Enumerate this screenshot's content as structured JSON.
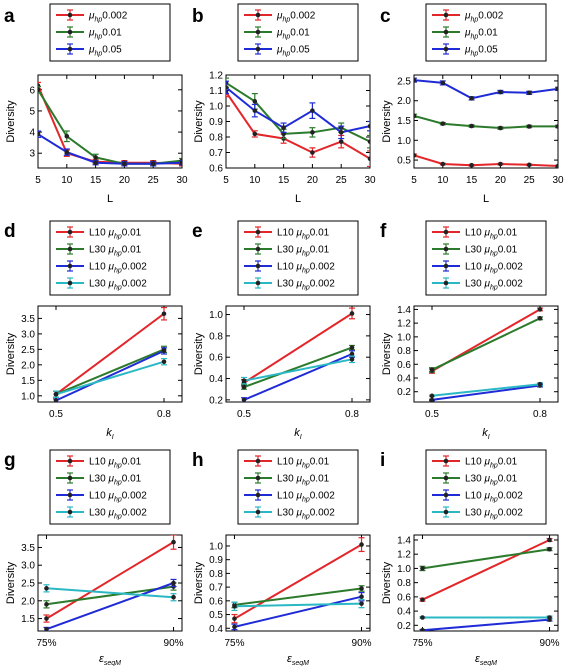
{
  "chart_data": [
    {
      "letter": "a",
      "type": "line",
      "ylabel": "Diversity",
      "xlabel": "L",
      "xlabel_italic": false,
      "x": [
        5,
        10,
        15,
        20,
        25,
        30
      ],
      "xlim": [
        5,
        30
      ],
      "ylim": [
        2.3,
        6.7
      ],
      "x_ticks": [
        5,
        10,
        15,
        20,
        25,
        30
      ],
      "x_tick_labels": [
        "5",
        "10",
        "15",
        "20",
        "25",
        "30"
      ],
      "y_ticks": [
        3,
        4,
        5,
        6
      ],
      "y_tick_labels": [
        "3",
        "4",
        "5",
        "6"
      ],
      "legend": {
        "prefix": "",
        "param": "hp",
        "suffix": [
          "0.002",
          "0.01",
          "0.05"
        ]
      },
      "series": [
        {
          "label_prefix": "",
          "label_suffix": "0.002",
          "color": "#e3262a",
          "values": [
            6.2,
            3.0,
            2.6,
            2.55,
            2.55,
            2.5
          ],
          "errors": [
            0.15,
            0.15,
            0.1,
            0.1,
            0.1,
            0.1
          ]
        },
        {
          "label_prefix": "",
          "label_suffix": "0.01",
          "color": "#2c7a2c",
          "values": [
            6.0,
            3.8,
            2.8,
            2.5,
            2.5,
            2.65
          ],
          "errors": [
            0.15,
            0.25,
            0.15,
            0.1,
            0.1,
            0.1
          ]
        },
        {
          "label_prefix": "",
          "label_suffix": "0.05",
          "color": "#1f2bd6",
          "values": [
            3.9,
            3.05,
            2.55,
            2.5,
            2.5,
            2.55
          ],
          "errors": [
            0.15,
            0.15,
            0.1,
            0.1,
            0.1,
            0.1
          ]
        }
      ]
    },
    {
      "letter": "b",
      "type": "line",
      "ylabel": "Diversity",
      "xlabel": "L",
      "xlabel_italic": false,
      "x": [
        5,
        10,
        15,
        20,
        25,
        30
      ],
      "xlim": [
        5,
        30
      ],
      "ylim": [
        0.6,
        1.2
      ],
      "x_ticks": [
        5,
        10,
        15,
        20,
        25,
        30
      ],
      "x_tick_labels": [
        "5",
        "10",
        "15",
        "20",
        "25",
        "30"
      ],
      "y_ticks": [
        0.6,
        0.7,
        0.8,
        0.9,
        1.0,
        1.1,
        1.2
      ],
      "y_tick_labels": [
        "0.6",
        "0.7",
        "0.8",
        "0.9",
        "1.0",
        "1.1",
        "1.2"
      ],
      "legend": {
        "prefix": "",
        "param": "hp",
        "suffix": [
          "0.002",
          "0.01",
          "0.05"
        ]
      },
      "series": [
        {
          "label_prefix": "",
          "label_suffix": "0.002",
          "color": "#e3262a",
          "values": [
            1.09,
            0.82,
            0.79,
            0.7,
            0.77,
            0.66
          ],
          "errors": [
            0.03,
            0.02,
            0.03,
            0.03,
            0.04,
            0.05
          ]
        },
        {
          "label_prefix": "",
          "label_suffix": "0.01",
          "color": "#2c7a2c",
          "values": [
            1.15,
            1.03,
            0.82,
            0.83,
            0.86,
            0.77
          ],
          "errors": [
            0.03,
            0.05,
            0.03,
            0.03,
            0.03,
            0.04
          ]
        },
        {
          "label_prefix": "",
          "label_suffix": "0.05",
          "color": "#1f2bd6",
          "values": [
            1.12,
            0.97,
            0.86,
            0.97,
            0.83,
            0.87
          ],
          "errors": [
            0.04,
            0.04,
            0.03,
            0.05,
            0.04,
            0.03
          ]
        }
      ]
    },
    {
      "letter": "c",
      "type": "line",
      "ylabel": "Diversity",
      "xlabel": "L",
      "xlabel_italic": false,
      "x": [
        5,
        10,
        15,
        20,
        25,
        30
      ],
      "xlim": [
        5,
        30
      ],
      "ylim": [
        0.3,
        2.65
      ],
      "x_ticks": [
        5,
        10,
        15,
        20,
        25,
        30
      ],
      "x_tick_labels": [
        "5",
        "10",
        "15",
        "20",
        "25",
        "30"
      ],
      "y_ticks": [
        0.5,
        1.0,
        1.5,
        2.0,
        2.5
      ],
      "y_tick_labels": [
        "0.5",
        "1.0",
        "1.5",
        "2.0",
        "2.5"
      ],
      "legend": {
        "prefix": "",
        "param": "hp",
        "suffix": [
          "0.002",
          "0.01",
          "0.05"
        ]
      },
      "series": [
        {
          "label_prefix": "",
          "label_suffix": "0.002",
          "color": "#e3262a",
          "values": [
            0.62,
            0.4,
            0.37,
            0.4,
            0.38,
            0.35
          ],
          "errors": [
            0.03,
            0.02,
            0.02,
            0.02,
            0.02,
            0.02
          ]
        },
        {
          "label_prefix": "",
          "label_suffix": "0.01",
          "color": "#2c7a2c",
          "values": [
            1.62,
            1.42,
            1.36,
            1.31,
            1.35,
            1.35
          ],
          "errors": [
            0.04,
            0.03,
            0.03,
            0.03,
            0.03,
            0.03
          ]
        },
        {
          "label_prefix": "",
          "label_suffix": "0.05",
          "color": "#1f2bd6",
          "values": [
            2.52,
            2.45,
            2.06,
            2.22,
            2.2,
            2.3
          ],
          "errors": [
            0.05,
            0.05,
            0.04,
            0.04,
            0.04,
            0.04
          ]
        }
      ]
    },
    {
      "letter": "d",
      "type": "line",
      "ylabel": "Diversity",
      "xlabel": "k",
      "xlabel_sub": "I",
      "xlabel_italic": true,
      "x": [
        0.5,
        0.8
      ],
      "xlim": [
        0.45,
        0.85
      ],
      "ylim": [
        0.8,
        3.9
      ],
      "x_ticks": [
        0.5,
        0.8
      ],
      "x_tick_labels": [
        "0.5",
        "0.8"
      ],
      "y_ticks": [
        1.0,
        1.5,
        2.0,
        2.5,
        3.0,
        3.5
      ],
      "y_tick_labels": [
        "1.0",
        "1.5",
        "2.0",
        "2.5",
        "3.0",
        "3.5"
      ],
      "series": [
        {
          "label_prefix": "L10 ",
          "label_suffix": "0.01",
          "color": "#e3262a",
          "values": [
            1.05,
            3.65
          ],
          "errors": [
            0.1,
            0.2
          ]
        },
        {
          "label_prefix": "L30 ",
          "label_suffix": "0.01",
          "color": "#2c7a2c",
          "values": [
            1.05,
            2.5
          ],
          "errors": [
            0.1,
            0.1
          ]
        },
        {
          "label_prefix": "L10 ",
          "label_suffix": "0.002",
          "color": "#1f2bd6",
          "values": [
            0.85,
            2.45
          ],
          "errors": [
            0.05,
            0.1
          ]
        },
        {
          "label_prefix": "L30 ",
          "label_suffix": "0.002",
          "color": "#2ab8c4",
          "values": [
            1.05,
            2.1
          ],
          "errors": [
            0.1,
            0.1
          ]
        }
      ]
    },
    {
      "letter": "e",
      "type": "line",
      "ylabel": "Diversity",
      "xlabel": "k",
      "xlabel_sub": "I",
      "xlabel_italic": true,
      "x": [
        0.5,
        0.8
      ],
      "xlim": [
        0.45,
        0.85
      ],
      "ylim": [
        0.18,
        1.08
      ],
      "x_ticks": [
        0.5,
        0.8
      ],
      "x_tick_labels": [
        "0.5",
        "0.8"
      ],
      "y_ticks": [
        0.2,
        0.4,
        0.6,
        0.8,
        1.0
      ],
      "y_tick_labels": [
        "0.2",
        "0.4",
        "0.6",
        "0.8",
        "1.0"
      ],
      "series": [
        {
          "label_prefix": "L10 ",
          "label_suffix": "0.01",
          "color": "#e3262a",
          "values": [
            0.36,
            1.01
          ],
          "errors": [
            0.03,
            0.05
          ]
        },
        {
          "label_prefix": "L30 ",
          "label_suffix": "0.01",
          "color": "#2c7a2c",
          "values": [
            0.32,
            0.69
          ],
          "errors": [
            0.02,
            0.02
          ]
        },
        {
          "label_prefix": "L10 ",
          "label_suffix": "0.002",
          "color": "#1f2bd6",
          "values": [
            0.2,
            0.63
          ],
          "errors": [
            0.02,
            0.03
          ]
        },
        {
          "label_prefix": "L30 ",
          "label_suffix": "0.002",
          "color": "#2ab8c4",
          "values": [
            0.38,
            0.58
          ],
          "errors": [
            0.03,
            0.03
          ]
        }
      ]
    },
    {
      "letter": "f",
      "type": "line",
      "ylabel": "Diversity",
      "xlabel": "k",
      "xlabel_sub": "I",
      "xlabel_italic": true,
      "x": [
        0.5,
        0.8
      ],
      "xlim": [
        0.45,
        0.85
      ],
      "ylim": [
        0.05,
        1.45
      ],
      "x_ticks": [
        0.5,
        0.8
      ],
      "x_tick_labels": [
        "0.5",
        "0.8"
      ],
      "y_ticks": [
        0.2,
        0.4,
        0.6,
        0.8,
        1.0,
        1.2,
        1.4
      ],
      "y_tick_labels": [
        "0.2",
        "0.4",
        "0.6",
        "0.8",
        "1.0",
        "1.2",
        "1.4"
      ],
      "series": [
        {
          "label_prefix": "L10 ",
          "label_suffix": "0.01",
          "color": "#e3262a",
          "values": [
            0.5,
            1.4
          ],
          "errors": [
            0.03,
            0.02
          ]
        },
        {
          "label_prefix": "L30 ",
          "label_suffix": "0.01",
          "color": "#2c7a2c",
          "values": [
            0.52,
            1.27
          ],
          "errors": [
            0.03,
            0.02
          ]
        },
        {
          "label_prefix": "L10 ",
          "label_suffix": "0.002",
          "color": "#1f2bd6",
          "values": [
            0.08,
            0.29
          ],
          "errors": [
            0.01,
            0.02
          ]
        },
        {
          "label_prefix": "L30 ",
          "label_suffix": "0.002",
          "color": "#2ab8c4",
          "values": [
            0.14,
            0.31
          ],
          "errors": [
            0.01,
            0.02
          ]
        }
      ]
    },
    {
      "letter": "g",
      "type": "line",
      "ylabel": "Diversity",
      "xlabel": "ε",
      "xlabel_sub": "seqM",
      "xlabel_italic": true,
      "x": [
        75,
        90
      ],
      "xlim": [
        74,
        91
      ],
      "ylim": [
        1.15,
        3.85
      ],
      "x_ticks": [
        75,
        90
      ],
      "x_tick_labels": [
        "75%",
        "90%"
      ],
      "y_ticks": [
        1.5,
        2.0,
        2.5,
        3.0,
        3.5
      ],
      "y_tick_labels": [
        "1.5",
        "2.0",
        "2.5",
        "3.0",
        "3.5"
      ],
      "series": [
        {
          "label_prefix": "L10 ",
          "label_suffix": "0.01",
          "color": "#e3262a",
          "values": [
            1.5,
            3.65
          ],
          "errors": [
            0.1,
            0.2
          ]
        },
        {
          "label_prefix": "L30 ",
          "label_suffix": "0.01",
          "color": "#2c7a2c",
          "values": [
            1.9,
            2.4
          ],
          "errors": [
            0.1,
            0.1
          ]
        },
        {
          "label_prefix": "L10 ",
          "label_suffix": "0.002",
          "color": "#1f2bd6",
          "values": [
            1.2,
            2.5
          ],
          "errors": [
            0.05,
            0.1
          ]
        },
        {
          "label_prefix": "L30 ",
          "label_suffix": "0.002",
          "color": "#2ab8c4",
          "values": [
            2.35,
            2.1
          ],
          "errors": [
            0.1,
            0.1
          ]
        }
      ]
    },
    {
      "letter": "h",
      "type": "line",
      "ylabel": "Diversity",
      "xlabel": "ε",
      "xlabel_sub": "seqM",
      "xlabel_italic": true,
      "x": [
        75,
        90
      ],
      "xlim": [
        74,
        91
      ],
      "ylim": [
        0.38,
        1.08
      ],
      "x_ticks": [
        75,
        90
      ],
      "x_tick_labels": [
        "75%",
        "90%"
      ],
      "y_ticks": [
        0.4,
        0.5,
        0.6,
        0.7,
        0.8,
        0.9,
        1.0
      ],
      "y_tick_labels": [
        "0.4",
        "0.5",
        "0.6",
        "0.7",
        "0.8",
        "0.9",
        "1.0"
      ],
      "series": [
        {
          "label_prefix": "L10 ",
          "label_suffix": "0.01",
          "color": "#e3262a",
          "values": [
            0.47,
            1.01
          ],
          "errors": [
            0.03,
            0.05
          ]
        },
        {
          "label_prefix": "L30 ",
          "label_suffix": "0.01",
          "color": "#2c7a2c",
          "values": [
            0.57,
            0.69
          ],
          "errors": [
            0.02,
            0.02
          ]
        },
        {
          "label_prefix": "L10 ",
          "label_suffix": "0.002",
          "color": "#1f2bd6",
          "values": [
            0.41,
            0.63
          ],
          "errors": [
            0.02,
            0.03
          ]
        },
        {
          "label_prefix": "L30 ",
          "label_suffix": "0.002",
          "color": "#2ab8c4",
          "values": [
            0.56,
            0.58
          ],
          "errors": [
            0.03,
            0.03
          ]
        }
      ]
    },
    {
      "letter": "i",
      "type": "line",
      "ylabel": "Diversity",
      "xlabel": "ε",
      "xlabel_sub": "seqM",
      "xlabel_italic": true,
      "x": [
        75,
        90
      ],
      "xlim": [
        74,
        91
      ],
      "ylim": [
        0.12,
        1.47
      ],
      "x_ticks": [
        75,
        90
      ],
      "x_tick_labels": [
        "75%",
        "90%"
      ],
      "y_ticks": [
        0.2,
        0.4,
        0.6,
        0.8,
        1.0,
        1.2,
        1.4
      ],
      "y_tick_labels": [
        "0.2",
        "0.4",
        "0.6",
        "0.8",
        "1.0",
        "1.2",
        "1.4"
      ],
      "series": [
        {
          "label_prefix": "L10 ",
          "label_suffix": "0.01",
          "color": "#e3262a",
          "values": [
            0.56,
            1.4
          ],
          "errors": [
            0.02,
            0.02
          ]
        },
        {
          "label_prefix": "L30 ",
          "label_suffix": "0.01",
          "color": "#2c7a2c",
          "values": [
            1.0,
            1.27
          ],
          "errors": [
            0.03,
            0.02
          ]
        },
        {
          "label_prefix": "L10 ",
          "label_suffix": "0.002",
          "color": "#1f2bd6",
          "values": [
            0.13,
            0.28
          ],
          "errors": [
            0.01,
            0.02
          ]
        },
        {
          "label_prefix": "L30 ",
          "label_suffix": "0.002",
          "color": "#2ab8c4",
          "values": [
            0.31,
            0.31
          ],
          "errors": [
            0.01,
            0.02
          ]
        }
      ]
    }
  ]
}
